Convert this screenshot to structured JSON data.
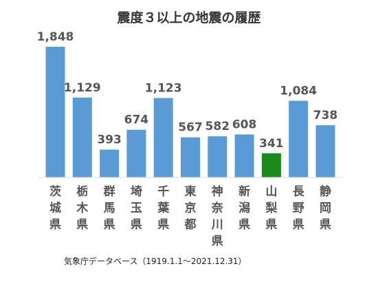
{
  "chart_data": {
    "type": "bar",
    "title": "震度３以上の地震の履歴",
    "categories": [
      "茨城県",
      "栃木県",
      "群馬県",
      "埼玉県",
      "千葉県",
      "東京都",
      "神奈川県",
      "新潟県",
      "山梨県",
      "長野県",
      "静岡県"
    ],
    "values": [
      1848,
      1129,
      393,
      674,
      1123,
      567,
      582,
      608,
      341,
      1084,
      738
    ],
    "value_labels": [
      "1,848",
      "1,129",
      "393",
      "674",
      "1,123",
      "567",
      "582",
      "608",
      "341",
      "1,084",
      "738"
    ],
    "highlight_index": 8,
    "ylim": [
      0,
      1848
    ],
    "grid": false,
    "legend": "none",
    "source": "気象庁データベース（1919.1.1～2021.12.31）"
  },
  "colors": {
    "bar": "#5b9bd5",
    "highlight": "#1a8a1a",
    "baseline": "#d9d9d9"
  }
}
